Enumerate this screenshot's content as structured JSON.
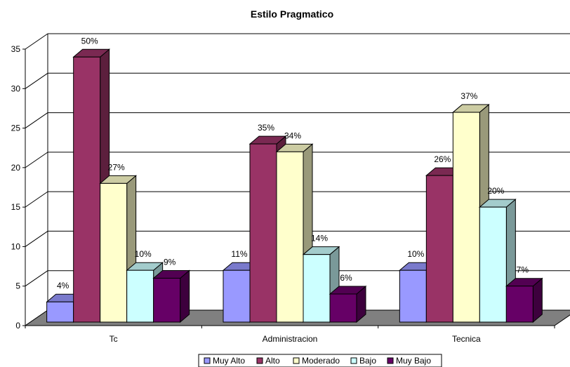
{
  "chart_data": {
    "type": "bar",
    "title": "Estilo Pragmatico",
    "categories": [
      "Tc",
      "Administracion",
      "Tecnica"
    ],
    "series": [
      {
        "name": "Muy Alto",
        "color": "#9999ff",
        "values": [
          3,
          7,
          7
        ],
        "labels": [
          "4%",
          "11%",
          "10%"
        ]
      },
      {
        "name": "Alto",
        "color": "#993366",
        "values": [
          34,
          23,
          19
        ],
        "labels": [
          "50%",
          "35%",
          "26%"
        ]
      },
      {
        "name": "Moderado",
        "color": "#ffffcc",
        "values": [
          18,
          22,
          27
        ],
        "labels": [
          "27%",
          "34%",
          "37%"
        ]
      },
      {
        "name": "Bajo",
        "color": "#ccffff",
        "values": [
          7,
          9,
          15
        ],
        "labels": [
          "10%",
          "14%",
          "20%"
        ]
      },
      {
        "name": "Muy Bajo",
        "color": "#660066",
        "values": [
          6,
          4,
          5
        ],
        "labels": [
          "9%",
          "6%",
          "7%"
        ]
      }
    ],
    "ylim": [
      0,
      35
    ],
    "yticks": [
      0,
      5,
      10,
      15,
      20,
      25,
      30,
      35
    ],
    "grid": true,
    "legend_position": "bottom"
  }
}
